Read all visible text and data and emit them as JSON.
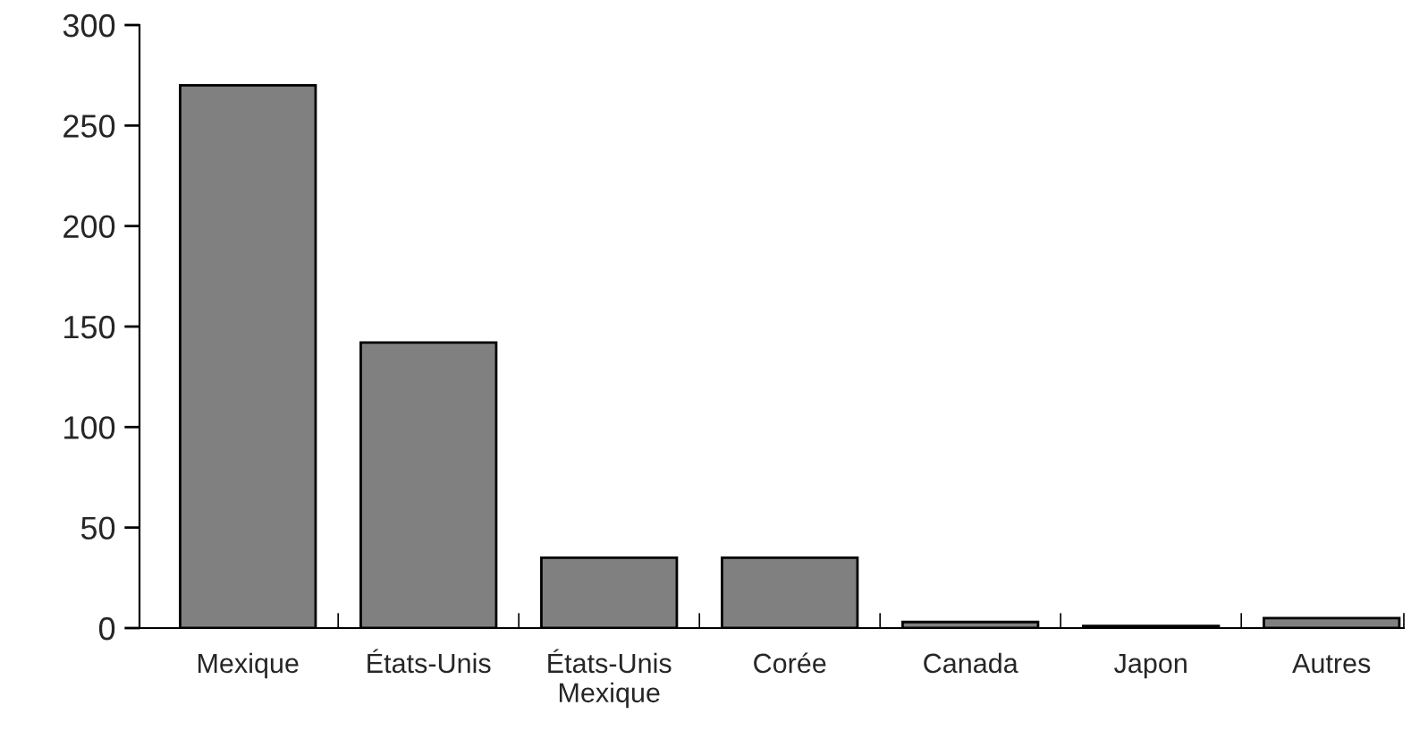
{
  "chart_data": {
    "type": "bar",
    "categories": [
      "Mexique",
      "États-Unis",
      "États-Unis\nMexique",
      "Corée",
      "Canada",
      "Japon",
      "Autres"
    ],
    "values": [
      270,
      142,
      35,
      35,
      3,
      1,
      5
    ],
    "color": "#808080",
    "ylim": [
      0,
      300
    ],
    "yticks": [
      0,
      50,
      100,
      150,
      200,
      250,
      300
    ],
    "grid": false,
    "legend": false
  }
}
